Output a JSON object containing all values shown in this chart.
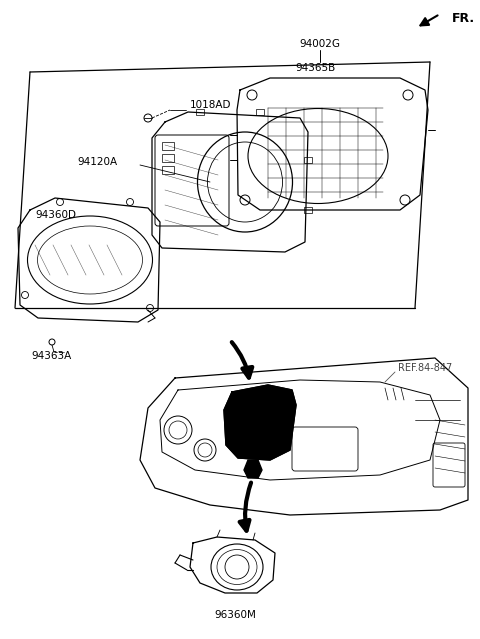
{
  "bg_color": "#ffffff",
  "line_color": "#000000",
  "labels": {
    "FR": "FR.",
    "94002G": "94002G",
    "94365B": "94365B",
    "1018AD": "1018AD",
    "94120A": "94120A",
    "94360D": "94360D",
    "94363A": "94363A",
    "REF84847": "REF.84-847",
    "96360M": "96360M"
  }
}
